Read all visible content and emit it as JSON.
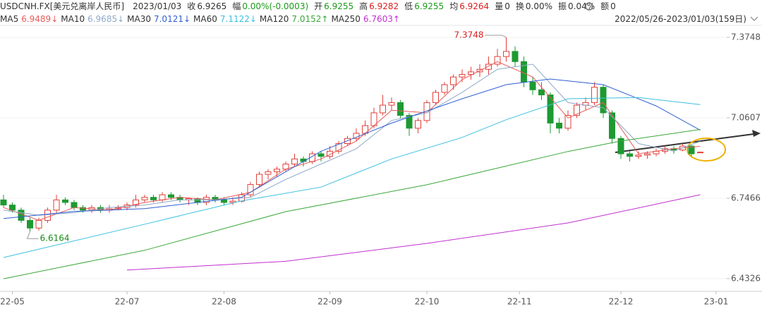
{
  "header": {
    "symbol": "USDCNH.FX[美元兑离岸人民币]",
    "date": "2023/01/03",
    "fields": [
      {
        "label": "收",
        "value": "6.9265",
        "color": "#333333"
      },
      {
        "label": "幅",
        "value": "0.00%(-0.0003)",
        "color": "#1a9a1a"
      },
      {
        "label": "开",
        "value": "6.9255",
        "color": "#1a9a1a"
      },
      {
        "label": "高",
        "value": "6.9282",
        "color": "#d92020"
      },
      {
        "label": "低",
        "value": "6.9255",
        "color": "#1a9a1a"
      },
      {
        "label": "均",
        "value": "6.9264",
        "color": "#d92020"
      },
      {
        "label": "量",
        "value": "0",
        "color": "#333333"
      },
      {
        "label": "换",
        "value": "0.00%",
        "color": "#333333"
      },
      {
        "label": "振",
        "value": "0.04%",
        "color": "#333333"
      },
      {
        "label": "额",
        "value": "0",
        "color": "#333333"
      }
    ],
    "range": "2022/05/26-2023/01/03(159日)"
  },
  "chart_data": {
    "type": "candlestick",
    "up_color": "#e0403a",
    "down_color": "#1e9a32",
    "candles": [
      [
        6.74,
        6.76,
        6.71,
        6.72
      ],
      [
        6.72,
        6.73,
        6.69,
        6.7
      ],
      [
        6.7,
        6.71,
        6.65,
        6.66
      ],
      [
        6.66,
        6.67,
        6.6164,
        6.63
      ],
      [
        6.63,
        6.67,
        6.62,
        6.66
      ],
      [
        6.66,
        6.71,
        6.65,
        6.7
      ],
      [
        6.7,
        6.76,
        6.69,
        6.74
      ],
      [
        6.74,
        6.75,
        6.72,
        6.73
      ],
      [
        6.73,
        6.74,
        6.7,
        6.71
      ],
      [
        6.71,
        6.72,
        6.69,
        6.7
      ],
      [
        6.7,
        6.72,
        6.69,
        6.71
      ],
      [
        6.71,
        6.72,
        6.69,
        6.7
      ],
      [
        6.7,
        6.72,
        6.69,
        6.705
      ],
      [
        6.705,
        6.72,
        6.7,
        6.71
      ],
      [
        6.71,
        6.73,
        6.7,
        6.72
      ],
      [
        6.72,
        6.76,
        6.71,
        6.74
      ],
      [
        6.74,
        6.76,
        6.73,
        6.75
      ],
      [
        6.75,
        6.76,
        6.73,
        6.74
      ],
      [
        6.74,
        6.77,
        6.73,
        6.76
      ],
      [
        6.76,
        6.77,
        6.74,
        6.75
      ],
      [
        6.75,
        6.76,
        6.73,
        6.74
      ],
      [
        6.74,
        6.75,
        6.72,
        6.745
      ],
      [
        6.745,
        6.75,
        6.72,
        6.73
      ],
      [
        6.73,
        6.76,
        6.72,
        6.75
      ],
      [
        6.75,
        6.76,
        6.73,
        6.74
      ],
      [
        6.74,
        6.75,
        6.72,
        6.73
      ],
      [
        6.73,
        6.75,
        6.72,
        6.735
      ],
      [
        6.735,
        6.77,
        6.73,
        6.76
      ],
      [
        6.76,
        6.81,
        6.75,
        6.8
      ],
      [
        6.8,
        6.85,
        6.79,
        6.84
      ],
      [
        6.84,
        6.86,
        6.82,
        6.85
      ],
      [
        6.85,
        6.87,
        6.83,
        6.86
      ],
      [
        6.86,
        6.89,
        6.85,
        6.88
      ],
      [
        6.88,
        6.92,
        6.87,
        6.9
      ],
      [
        6.9,
        6.91,
        6.87,
        6.89
      ],
      [
        6.89,
        6.93,
        6.88,
        6.92
      ],
      [
        6.92,
        6.93,
        6.89,
        6.91
      ],
      [
        6.91,
        6.95,
        6.9,
        6.93
      ],
      [
        6.93,
        6.97,
        6.92,
        6.96
      ],
      [
        6.96,
        6.99,
        6.95,
        6.98
      ],
      [
        6.98,
        7.02,
        6.97,
        7.0
      ],
      [
        7.0,
        7.05,
        6.99,
        7.03
      ],
      [
        7.03,
        7.1,
        7.02,
        7.08
      ],
      [
        7.08,
        7.15,
        7.07,
        7.11
      ],
      [
        7.11,
        7.14,
        7.09,
        7.12
      ],
      [
        7.12,
        7.13,
        7.06,
        7.07
      ],
      [
        7.07,
        7.08,
        6.99,
        7.02
      ],
      [
        7.02,
        7.06,
        7.0,
        7.05
      ],
      [
        7.05,
        7.13,
        7.04,
        7.12
      ],
      [
        7.12,
        7.17,
        7.11,
        7.16
      ],
      [
        7.16,
        7.2,
        7.15,
        7.19
      ],
      [
        7.19,
        7.23,
        7.17,
        7.22
      ],
      [
        7.22,
        7.25,
        7.2,
        7.23
      ],
      [
        7.23,
        7.26,
        7.21,
        7.24
      ],
      [
        7.24,
        7.27,
        7.22,
        7.25
      ],
      [
        7.25,
        7.3,
        7.23,
        7.27
      ],
      [
        7.27,
        7.33,
        7.26,
        7.3
      ],
      [
        7.3,
        7.3748,
        7.28,
        7.32
      ],
      [
        7.32,
        7.34,
        7.26,
        7.28
      ],
      [
        7.28,
        7.3,
        7.18,
        7.2
      ],
      [
        7.2,
        7.22,
        7.15,
        7.17
      ],
      [
        7.17,
        7.2,
        7.13,
        7.15
      ],
      [
        7.15,
        7.16,
        7.0,
        7.04
      ],
      [
        7.04,
        7.06,
        7.0,
        7.02
      ],
      [
        7.02,
        7.09,
        7.01,
        7.07
      ],
      [
        7.07,
        7.12,
        7.06,
        7.11
      ],
      [
        7.11,
        7.14,
        7.09,
        7.12
      ],
      [
        7.12,
        7.2,
        7.11,
        7.18
      ],
      [
        7.18,
        7.19,
        7.06,
        7.08
      ],
      [
        7.08,
        7.09,
        6.96,
        6.98
      ],
      [
        6.98,
        6.99,
        6.9,
        6.92
      ],
      [
        6.92,
        6.93,
        6.89,
        6.91
      ],
      [
        6.91,
        6.93,
        6.9,
        6.915
      ],
      [
        6.915,
        6.93,
        6.9,
        6.92
      ],
      [
        6.92,
        6.94,
        6.91,
        6.93
      ],
      [
        6.93,
        6.95,
        6.92,
        6.94
      ],
      [
        6.94,
        6.95,
        6.92,
        6.935
      ],
      [
        6.935,
        6.96,
        6.93,
        6.95
      ],
      [
        6.95,
        6.955,
        6.91,
        6.92
      ],
      [
        6.9255,
        6.9282,
        6.9255,
        6.9265
      ]
    ],
    "series": [
      {
        "name": "MA5",
        "legend_value": "6.9489↓",
        "color": "#e85a5a",
        "x": [
          0,
          4,
          8,
          12,
          16,
          20,
          24,
          28,
          32,
          36,
          40,
          44,
          48,
          52,
          56,
          60,
          64,
          68,
          72,
          76,
          79
        ],
        "values": [
          6.71,
          6.66,
          6.71,
          6.7,
          6.73,
          6.75,
          6.74,
          6.77,
          6.86,
          6.9,
          6.97,
          7.09,
          7.08,
          7.21,
          7.28,
          7.22,
          7.06,
          7.12,
          6.92,
          6.94,
          6.9489
        ]
      },
      {
        "name": "MA10",
        "legend_value": "6.9685↓",
        "color": "#8fa8c8",
        "x": [
          0,
          4,
          8,
          12,
          16,
          20,
          24,
          28,
          32,
          36,
          40,
          44,
          48,
          52,
          56,
          60,
          64,
          68,
          72,
          76,
          79
        ],
        "values": [
          6.7,
          6.68,
          6.69,
          6.71,
          6.72,
          6.74,
          6.74,
          6.75,
          6.82,
          6.88,
          6.94,
          7.05,
          7.08,
          7.16,
          7.25,
          7.27,
          7.12,
          7.1,
          6.96,
          6.93,
          6.9685
        ]
      },
      {
        "name": "MA30",
        "legend_value": "7.0121↓",
        "color": "#2f5fd0",
        "x": [
          0,
          8,
          16,
          27,
          36,
          44,
          52,
          57,
          62,
          68,
          74,
          79
        ],
        "values": [
          6.667,
          6.695,
          6.706,
          6.75,
          6.93,
          7.04,
          7.135,
          7.19,
          7.212,
          7.19,
          7.107,
          7.0121
        ]
      },
      {
        "name": "MA60",
        "legend_value": "7.1122↓",
        "color": "#3cc0e0",
        "x": [
          0,
          16,
          27,
          36,
          44,
          52,
          57,
          64,
          72,
          79
        ],
        "values": [
          6.515,
          6.645,
          6.736,
          6.79,
          6.9,
          6.984,
          7.053,
          7.135,
          7.14,
          7.1122
        ]
      },
      {
        "name": "MA120",
        "legend_value": "7.0152↑",
        "color": "#3aa83a",
        "x": [
          0,
          16,
          32,
          48,
          64,
          70,
          79
        ],
        "values": [
          6.432,
          6.543,
          6.694,
          6.799,
          6.929,
          6.97,
          7.0152
        ]
      },
      {
        "name": "MA250",
        "legend_value": "6.7603↑",
        "color": "#c030d0",
        "x": [
          14,
          32,
          48,
          64,
          79
        ],
        "values": [
          6.466,
          6.5,
          6.57,
          6.65,
          6.7603
        ]
      }
    ],
    "annotations": [
      {
        "text": "7.3748",
        "color": "#d92020"
      },
      {
        "text": "6.6164",
        "color": "#1a8a1a"
      }
    ],
    "xlim": [
      -0.4,
      82
    ],
    "xticks": [
      {
        "value": 1,
        "label": "22-05"
      },
      {
        "value": 14,
        "label": "22-07"
      },
      {
        "value": 25,
        "label": "22-08"
      },
      {
        "value": 37,
        "label": "22-09"
      },
      {
        "value": 48,
        "label": "22-10"
      },
      {
        "value": 58.5,
        "label": "22-11"
      },
      {
        "value": 70,
        "label": "22-12"
      },
      {
        "value": 80.8,
        "label": "23-01"
      }
    ],
    "ylim": [
      6.391,
      7.416
    ],
    "yticks": [
      7.3748,
      7.0607,
      6.7466,
      6.4326
    ],
    "grid": true
  }
}
